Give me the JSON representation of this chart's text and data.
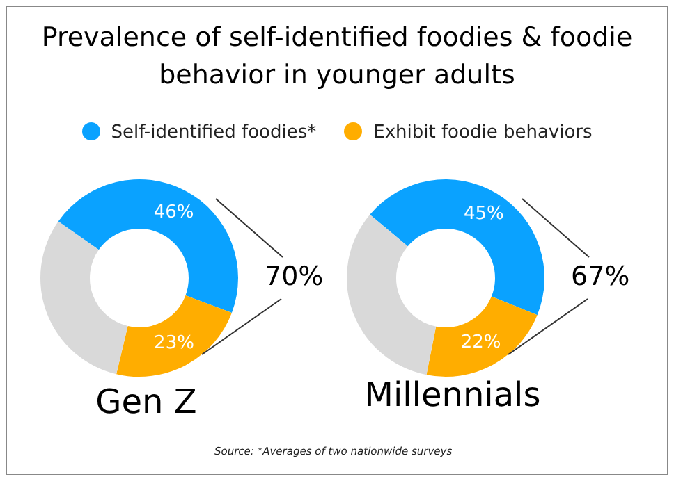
{
  "chart_data": [
    {
      "type": "donut",
      "title": "Prevalence of self-identified foodies & foodie behavior in younger adults",
      "xlabel": "Gen Z",
      "categories": [
        "Self-identified foodies*",
        "Exhibit foodie behaviors",
        null
      ],
      "values": [
        46,
        23,
        31
      ],
      "colors": [
        "#0aa2ff",
        "#ffad00",
        "#d9d9d9"
      ],
      "value_labels": [
        "46%",
        "23%",
        null
      ],
      "legend": "top",
      "annotations": [
        "70%"
      ]
    },
    {
      "type": "donut",
      "xlabel": "Millennials",
      "categories": [
        null,
        null,
        null
      ],
      "values": [
        45,
        22,
        33
      ],
      "colors": [
        "#0aa2ff",
        "#ffad00",
        "#d9d9d9"
      ],
      "value_labels": [
        "45%",
        "22%",
        null
      ],
      "annotations": [
        "67%",
        "Source: *Averages of two nationwide surveys"
      ]
    }
  ]
}
